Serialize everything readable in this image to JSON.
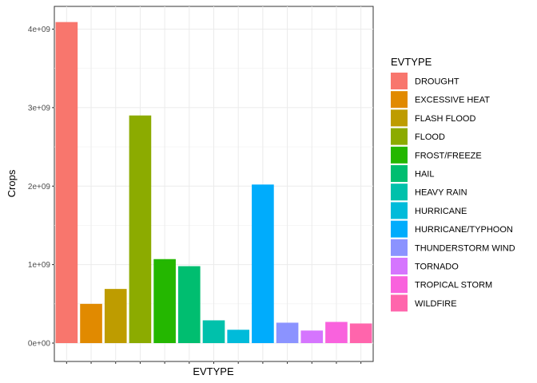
{
  "chart_data": {
    "type": "bar",
    "title": "",
    "xlabel": "EVTYPE",
    "ylabel": "Crops",
    "ylim": [
      0,
      4200000000.0
    ],
    "y_ticks": [
      0,
      1000000000.0,
      2000000000.0,
      3000000000.0,
      4000000000.0
    ],
    "y_tick_labels": [
      "0e+00",
      "1e+09",
      "2e+09",
      "3e+09",
      "4e+09"
    ],
    "grid": true,
    "legend_position": "right",
    "legend_title": "EVTYPE",
    "categories": [
      "DROUGHT",
      "EXCESSIVE HEAT",
      "FLASH FLOOD",
      "FLOOD",
      "FROST/FREEZE",
      "HAIL",
      "HEAVY RAIN",
      "HURRICANE",
      "HURRICANE/TYPHOON",
      "THUNDERSTORM WIND",
      "TORNADO",
      "TROPICAL STORM",
      "WILDFIRE"
    ],
    "values": [
      4090000000.0,
      500000000.0,
      690000000.0,
      2900000000.0,
      1070000000.0,
      980000000.0,
      290000000.0,
      170000000.0,
      2020000000.0,
      260000000.0,
      160000000.0,
      270000000.0,
      250000000.0
    ],
    "colors": [
      "#F8766D",
      "#E18A00",
      "#BE9C00",
      "#8CAB00",
      "#24B700",
      "#00BE70",
      "#00C1AB",
      "#00BBDA",
      "#00ACFC",
      "#8B93FF",
      "#D575FE",
      "#F962DD",
      "#FF65AC"
    ]
  }
}
